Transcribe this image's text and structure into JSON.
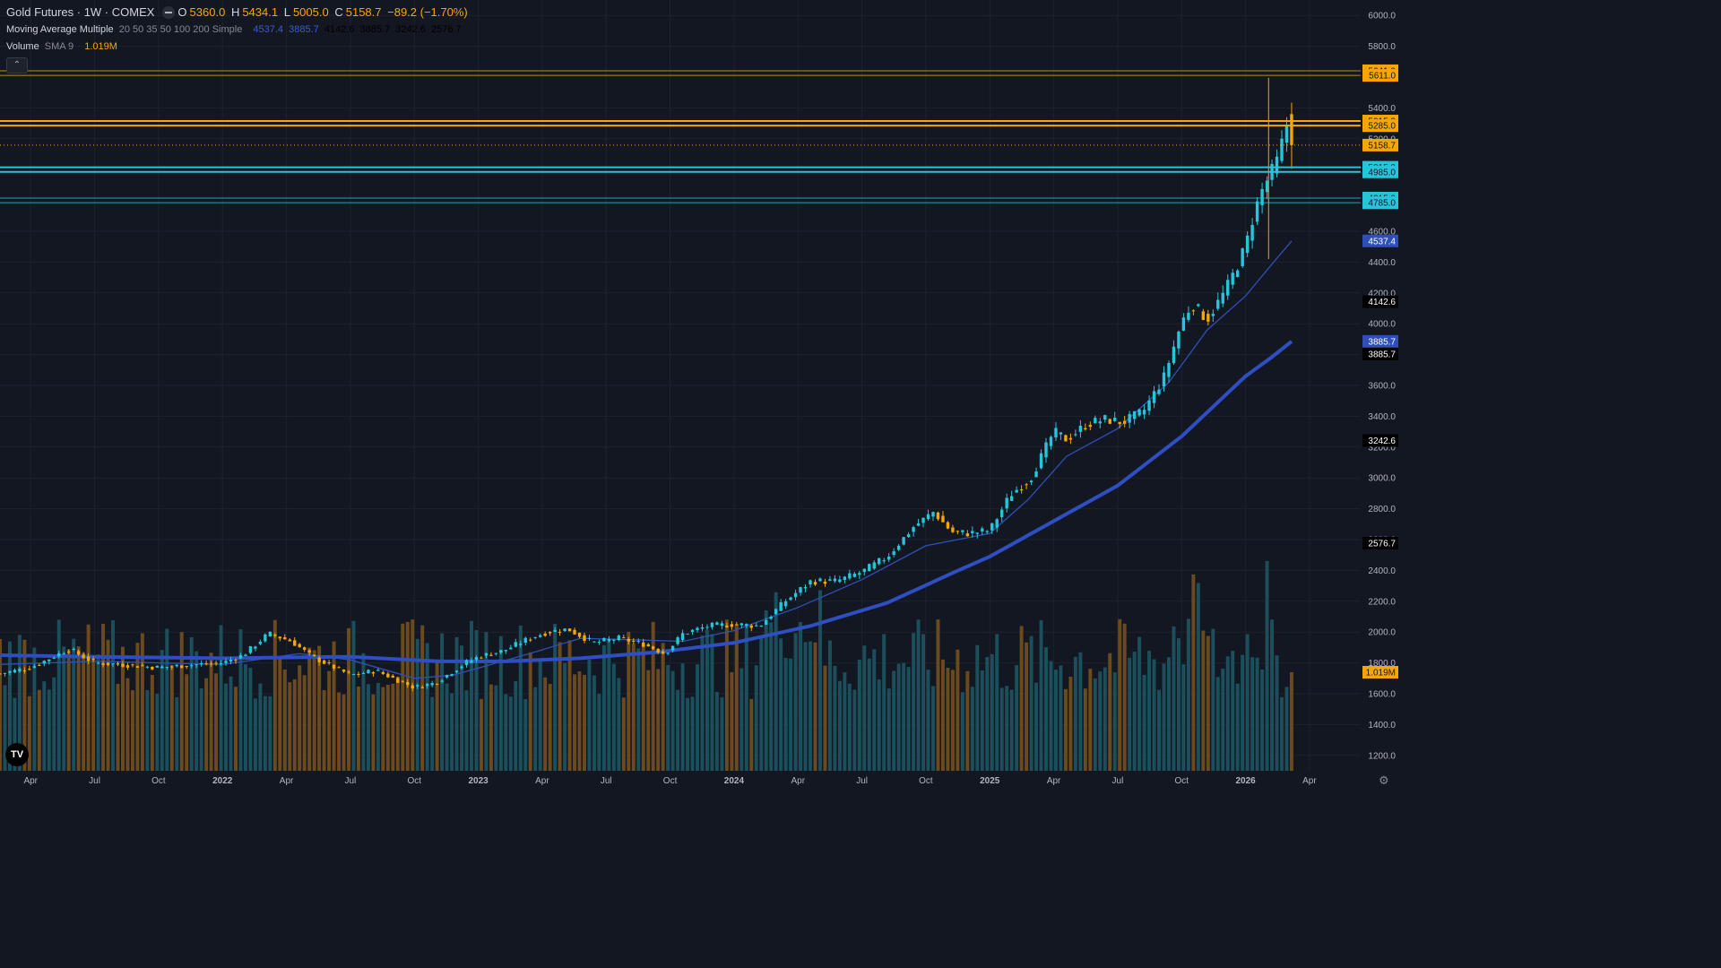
{
  "legend": {
    "symbol": "Gold Futures · 1W · COMEX",
    "open_label": "O",
    "open": "5360.0",
    "high_label": "H",
    "high": "5434.1",
    "low_label": "L",
    "low": "5005.0",
    "close_label": "C",
    "close": "5158.7",
    "change": "−89.2 (−1.70%)",
    "ma_title": "Moving Average Multiple",
    "ma_params": "20 50 35 50 100 200 Simple",
    "ma_values": [
      "4537.4",
      "3885.7",
      "4142.6",
      "3885.7",
      "3242.6",
      "2576.7"
    ],
    "vol_title": "Volume",
    "vol_params": "SMA 9",
    "vol_value": "1.019M"
  },
  "colors": {
    "background": "#131722",
    "up": "#26c6da",
    "down": "#f7a600",
    "volume_up": "#1b4f5c",
    "volume_down": "#6b4a1d",
    "ma_fast": "#2f4fb8",
    "ma_slow": "#2e4ec2",
    "res_line": "#f7a600",
    "sup_line": "#26c6da"
  },
  "icons": {
    "eye": "eye-icon",
    "collapse": "chevron-up-icon",
    "logo": "tradingview-logo-icon",
    "settings": "gear-icon"
  },
  "logo_text": "TV",
  "chart_data": {
    "type": "candlestick",
    "y_axis_ticks": [
      "1200.0",
      "1400.0",
      "1600.0",
      "1800.0",
      "2000.0",
      "2200.0",
      "2400.0",
      "2600.0",
      "2800.0",
      "3000.0",
      "3200.0",
      "3400.0",
      "3600.0",
      "3800.0",
      "4000.0",
      "4200.0",
      "4400.0",
      "4600.0",
      "5200.0",
      "5400.0",
      "5800.0",
      "6000.0"
    ],
    "x_axis_ticks": [
      {
        "label": "Apr",
        "t": 2021.25
      },
      {
        "label": "Jul",
        "t": 2021.5
      },
      {
        "label": "Oct",
        "t": 2021.75
      },
      {
        "label": "2022",
        "t": 2022.0,
        "bold": true
      },
      {
        "label": "Apr",
        "t": 2022.25
      },
      {
        "label": "Jul",
        "t": 2022.5
      },
      {
        "label": "Oct",
        "t": 2022.75
      },
      {
        "label": "2023",
        "t": 2023.0,
        "bold": true
      },
      {
        "label": "Apr",
        "t": 2023.25
      },
      {
        "label": "Jul",
        "t": 2023.5
      },
      {
        "label": "Oct",
        "t": 2023.75
      },
      {
        "label": "2024",
        "t": 2024.0,
        "bold": true
      },
      {
        "label": "Apr",
        "t": 2024.25
      },
      {
        "label": "Jul",
        "t": 2024.5
      },
      {
        "label": "Oct",
        "t": 2024.75
      },
      {
        "label": "2025",
        "t": 2025.0,
        "bold": true
      },
      {
        "label": "Apr",
        "t": 2025.25
      },
      {
        "label": "Jul",
        "t": 2025.5
      },
      {
        "label": "Oct",
        "t": 2025.75
      },
      {
        "label": "2026",
        "t": 2026.0,
        "bold": true
      },
      {
        "label": "Apr",
        "t": 2026.25
      }
    ],
    "x_range": [
      2021.13,
      2026.45
    ],
    "y_range": [
      1100,
      6100
    ],
    "horizontal_lines": [
      {
        "price": 5641.0,
        "label": "5641.0",
        "kind": "res",
        "style": "thin"
      },
      {
        "price": 5611.0,
        "label": "5611.0",
        "kind": "res",
        "style": "thin"
      },
      {
        "price": 5315.0,
        "label": "5315.0",
        "kind": "res",
        "style": "thick"
      },
      {
        "price": 5285.0,
        "label": "5285.0",
        "kind": "res",
        "style": "thick"
      },
      {
        "price": 5015.0,
        "label": "5015.0",
        "kind": "sup",
        "style": "thick"
      },
      {
        "price": 4985.0,
        "label": "4985.0",
        "kind": "sup",
        "style": "thick"
      },
      {
        "price": 4815.0,
        "label": "4815.0",
        "kind": "sup",
        "style": "thin"
      },
      {
        "price": 4785.0,
        "label": "4785.0",
        "kind": "sup",
        "style": "thin"
      }
    ],
    "last_price": {
      "price": 5158.7,
      "label": "5158.7"
    },
    "price_tags": [
      {
        "price": 4537.4,
        "label": "4537.4",
        "style": "blue"
      },
      {
        "price": 4142.6,
        "label": "4142.6",
        "style": "dark"
      },
      {
        "price": 3885.7,
        "label": "3885.7",
        "style": "blue"
      },
      {
        "price": 3885.7,
        "label": "3885.7",
        "style": "dark",
        "offset": 1
      },
      {
        "price": 3242.6,
        "label": "3242.6",
        "style": "dark"
      },
      {
        "price": 2576.7,
        "label": "2576.7",
        "style": "dark"
      }
    ],
    "volume_tag": {
      "label": "1.019M"
    },
    "price_path": [
      [
        2021.13,
        1730
      ],
      [
        2021.25,
        1770
      ],
      [
        2021.4,
        1890
      ],
      [
        2021.5,
        1800
      ],
      [
        2021.6,
        1790
      ],
      [
        2021.75,
        1770
      ],
      [
        2021.9,
        1790
      ],
      [
        2022.0,
        1800
      ],
      [
        2022.08,
        1850
      ],
      [
        2022.18,
        1990
      ],
      [
        2022.27,
        1940
      ],
      [
        2022.35,
        1840
      ],
      [
        2022.5,
        1720
      ],
      [
        2022.6,
        1750
      ],
      [
        2022.75,
        1640
      ],
      [
        2022.83,
        1670
      ],
      [
        2022.95,
        1800
      ],
      [
        2023.0,
        1840
      ],
      [
        2023.1,
        1880
      ],
      [
        2023.2,
        1960
      ],
      [
        2023.27,
        2000
      ],
      [
        2023.35,
        2020
      ],
      [
        2023.45,
        1930
      ],
      [
        2023.55,
        1960
      ],
      [
        2023.65,
        1920
      ],
      [
        2023.73,
        1860
      ],
      [
        2023.8,
        1990
      ],
      [
        2023.9,
        2040
      ],
      [
        2024.0,
        2050
      ],
      [
        2024.1,
        2040
      ],
      [
        2024.2,
        2200
      ],
      [
        2024.3,
        2330
      ],
      [
        2024.4,
        2330
      ],
      [
        2024.5,
        2390
      ],
      [
        2024.6,
        2490
      ],
      [
        2024.7,
        2680
      ],
      [
        2024.78,
        2780
      ],
      [
        2024.85,
        2650
      ],
      [
        2024.92,
        2640
      ],
      [
        2025.0,
        2660
      ],
      [
        2025.08,
        2890
      ],
      [
        2025.16,
        3000
      ],
      [
        2025.25,
        3300
      ],
      [
        2025.3,
        3250
      ],
      [
        2025.38,
        3350
      ],
      [
        2025.45,
        3380
      ],
      [
        2025.52,
        3360
      ],
      [
        2025.6,
        3430
      ],
      [
        2025.68,
        3650
      ],
      [
        2025.75,
        4010
      ],
      [
        2025.79,
        4130
      ],
      [
        2025.85,
        4030
      ],
      [
        2025.92,
        4210
      ],
      [
        2025.96,
        4350
      ],
      [
        2026.0,
        4500
      ],
      [
        2026.03,
        4700
      ],
      [
        2026.06,
        4850
      ],
      [
        2026.09,
        4950
      ],
      [
        2026.12,
        5040
      ],
      [
        2026.15,
        5220
      ],
      [
        2026.17,
        5360
      ],
      [
        2026.18,
        5158.7
      ]
    ],
    "ma_fast_path": [
      [
        2021.13,
        1790
      ],
      [
        2021.5,
        1810
      ],
      [
        2022.0,
        1790
      ],
      [
        2022.3,
        1860
      ],
      [
        2022.5,
        1820
      ],
      [
        2022.75,
        1700
      ],
      [
        2022.9,
        1720
      ],
      [
        2023.2,
        1860
      ],
      [
        2023.4,
        1960
      ],
      [
        2023.6,
        1950
      ],
      [
        2023.8,
        1940
      ],
      [
        2024.0,
        2010
      ],
      [
        2024.25,
        2160
      ],
      [
        2024.5,
        2340
      ],
      [
        2024.75,
        2560
      ],
      [
        2025.0,
        2640
      ],
      [
        2025.15,
        2860
      ],
      [
        2025.3,
        3140
      ],
      [
        2025.5,
        3320
      ],
      [
        2025.7,
        3620
      ],
      [
        2025.85,
        3960
      ],
      [
        2026.0,
        4180
      ],
      [
        2026.1,
        4380
      ],
      [
        2026.18,
        4537.4
      ]
    ],
    "ma_slow_path": [
      [
        2021.13,
        1850
      ],
      [
        2021.5,
        1840
      ],
      [
        2022.0,
        1830
      ],
      [
        2022.5,
        1840
      ],
      [
        2022.85,
        1810
      ],
      [
        2023.1,
        1810
      ],
      [
        2023.4,
        1830
      ],
      [
        2023.7,
        1870
      ],
      [
        2024.0,
        1930
      ],
      [
        2024.3,
        2040
      ],
      [
        2024.6,
        2190
      ],
      [
        2024.85,
        2380
      ],
      [
        2025.0,
        2490
      ],
      [
        2025.25,
        2720
      ],
      [
        2025.5,
        2950
      ],
      [
        2025.75,
        3270
      ],
      [
        2026.0,
        3660
      ],
      [
        2026.1,
        3780
      ],
      [
        2026.18,
        3885.7
      ]
    ]
  }
}
